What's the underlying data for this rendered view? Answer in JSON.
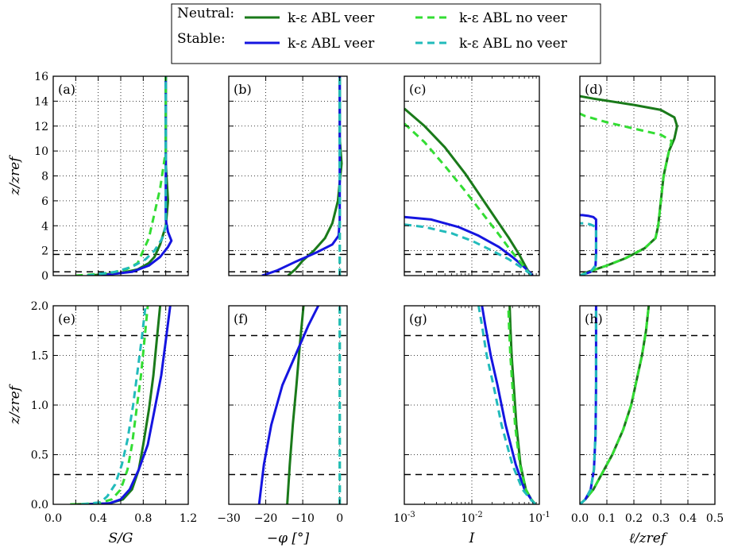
{
  "legend": {
    "rows": [
      {
        "label": "Neutral:",
        "entries": [
          {
            "text": "k-ε ABL veer",
            "color": "#1a7a1a",
            "dash": "solid"
          },
          {
            "text": "k-ε ABL no veer",
            "color": "#33dd33",
            "dash": "dashed"
          }
        ]
      },
      {
        "label": "Stable:",
        "entries": [
          {
            "text": "k-ε ABL veer",
            "color": "#1515e0",
            "dash": "solid"
          },
          {
            "text": "k-ε ABL no veer",
            "color": "#22bbbb",
            "dash": "dashed"
          }
        ]
      }
    ]
  },
  "chart_data": [
    {
      "panel": "(a)",
      "type": "line",
      "xlabel": "",
      "ylabel": "z/zref",
      "xlim": [
        0,
        1.2
      ],
      "ylim": [
        0,
        16
      ],
      "xscale": "linear",
      "yticks": [
        "0",
        "2",
        "4",
        "6",
        "8",
        "10",
        "12",
        "14",
        "16"
      ],
      "xticks": [],
      "hlines": [
        0.3,
        1.7
      ],
      "series": [
        {
          "name": "Neutral veer",
          "color": "#1a7a1a",
          "dash": "solid",
          "x": [
            0.3,
            0.6,
            0.75,
            0.85,
            0.9,
            0.95,
            1.0,
            1.02,
            1.0,
            1.0,
            1.0
          ],
          "y": [
            0,
            0.2,
            0.5,
            1,
            1.5,
            2.5,
            4,
            6,
            9,
            12,
            16
          ]
        },
        {
          "name": "Neutral no veer",
          "color": "#33dd33",
          "dash": "dashed",
          "x": [
            0.2,
            0.5,
            0.65,
            0.75,
            0.8,
            0.85,
            0.9,
            0.95,
            1.0,
            1.0
          ],
          "y": [
            0,
            0.2,
            0.5,
            1,
            2,
            3,
            5,
            7,
            10,
            16
          ]
        },
        {
          "name": "Stable veer",
          "color": "#1515e0",
          "dash": "solid",
          "x": [
            0.4,
            0.7,
            0.85,
            0.95,
            1.02,
            1.05,
            1.02,
            1.0,
            1.0
          ],
          "y": [
            0,
            0.3,
            0.8,
            1.5,
            2.3,
            2.8,
            3.5,
            4.5,
            16
          ]
        },
        {
          "name": "Stable no veer",
          "color": "#22bbbb",
          "dash": "dashed",
          "x": [
            0.3,
            0.55,
            0.7,
            0.82,
            0.9,
            0.97,
            1.0,
            1.0
          ],
          "y": [
            0,
            0.3,
            0.7,
            1.3,
            2,
            3,
            4,
            16
          ]
        }
      ]
    },
    {
      "panel": "(b)",
      "type": "line",
      "xlabel": "",
      "ylabel": "",
      "xlim": [
        -30,
        2
      ],
      "ylim": [
        0,
        16
      ],
      "xscale": "linear",
      "yticks": [],
      "xticks": [],
      "hlines": [
        0.3,
        1.7
      ],
      "series": [
        {
          "name": "Neutral veer",
          "color": "#1a7a1a",
          "dash": "solid",
          "x": [
            -14,
            -12,
            -10,
            -7,
            -4,
            -2,
            -0.5,
            0,
            0.5,
            0,
            0
          ],
          "y": [
            0,
            0.5,
            1.2,
            2,
            3,
            4.2,
            6,
            7.5,
            9,
            11,
            16
          ]
        },
        {
          "name": "Neutral no veer",
          "color": "#33dd33",
          "dash": "dashed",
          "x": [
            0,
            0
          ],
          "y": [
            0,
            16
          ]
        },
        {
          "name": "Stable veer",
          "color": "#1515e0",
          "dash": "solid",
          "x": [
            -21,
            -17,
            -12,
            -6,
            -2,
            -0.3,
            0,
            0
          ],
          "y": [
            0,
            0.4,
            1.1,
            1.9,
            2.5,
            3.2,
            4.5,
            16
          ]
        },
        {
          "name": "Stable no veer",
          "color": "#22bbbb",
          "dash": "dashed",
          "x": [
            0,
            0
          ],
          "y": [
            0,
            16
          ]
        }
      ]
    },
    {
      "panel": "(c)",
      "type": "line",
      "xlabel": "",
      "ylabel": "",
      "xlim": [
        -3,
        -1
      ],
      "ylim": [
        0,
        16
      ],
      "xscale": "log10",
      "yticks": [],
      "xticks": [],
      "hlines": [
        0.3,
        1.7
      ],
      "series": [
        {
          "name": "Neutral veer",
          "color": "#1a7a1a",
          "dash": "solid",
          "x": [
            -3,
            -2.7,
            -2.4,
            -2.1,
            -1.8,
            -1.6,
            -1.45,
            -1.3,
            -1.18,
            -1.12
          ],
          "y": [
            13.4,
            12,
            10.3,
            8.2,
            5.8,
            4.2,
            3,
            1.7,
            0.5,
            0
          ]
        },
        {
          "name": "Neutral no veer",
          "color": "#33dd33",
          "dash": "dashed",
          "x": [
            -3,
            -2.7,
            -2.4,
            -2.1,
            -1.8,
            -1.6,
            -1.45,
            -1.3,
            -1.18,
            -1.12
          ],
          "y": [
            12.2,
            10.7,
            8.8,
            6.8,
            4.7,
            3.3,
            2.2,
            1.2,
            0.4,
            0
          ]
        },
        {
          "name": "Stable veer",
          "color": "#1515e0",
          "dash": "solid",
          "x": [
            -3,
            -2.6,
            -2.2,
            -1.9,
            -1.6,
            -1.4,
            -1.25,
            -1.15,
            -1.1
          ],
          "y": [
            4.7,
            4.5,
            3.9,
            3.2,
            2.3,
            1.5,
            0.8,
            0.3,
            0
          ]
        },
        {
          "name": "Stable no veer",
          "color": "#22bbbb",
          "dash": "dashed",
          "x": [
            -3,
            -2.7,
            -2.3,
            -2,
            -1.7,
            -1.45,
            -1.25,
            -1.15,
            -1.1
          ],
          "y": [
            4.1,
            3.9,
            3.4,
            2.8,
            2,
            1.3,
            0.6,
            0.2,
            0
          ]
        }
      ]
    },
    {
      "panel": "(d)",
      "type": "line",
      "xlabel": "",
      "ylabel": "",
      "xlim": [
        0,
        0.5
      ],
      "ylim": [
        0,
        16
      ],
      "xscale": "linear",
      "yticks": [],
      "xticks": [],
      "hlines": [
        0.3,
        1.7
      ],
      "series": [
        {
          "name": "Neutral veer",
          "color": "#1a7a1a",
          "dash": "solid",
          "x": [
            0,
            0.03,
            0.1,
            0.17,
            0.24,
            0.28,
            0.29,
            0.3,
            0.31,
            0.33,
            0.35,
            0.36,
            0.35,
            0.3,
            0.2,
            0.05,
            0
          ],
          "y": [
            0,
            0.3,
            0.8,
            1.4,
            2.2,
            3,
            4,
            6,
            8,
            10,
            11,
            12,
            12.7,
            13.3,
            13.7,
            14.2,
            14.4
          ]
        },
        {
          "name": "Neutral no veer",
          "color": "#33dd33",
          "dash": "dashed",
          "x": [
            0,
            0.03,
            0.1,
            0.17,
            0.24,
            0.28,
            0.29,
            0.3,
            0.31,
            0.33,
            0.34,
            0.3,
            0.2,
            0.1,
            0.02,
            0
          ],
          "y": [
            0,
            0.3,
            0.8,
            1.4,
            2.2,
            3,
            4,
            6,
            8,
            10,
            10.8,
            11.3,
            11.8,
            12.3,
            12.8,
            13
          ]
        },
        {
          "name": "Stable veer",
          "color": "#1515e0",
          "dash": "solid",
          "x": [
            0,
            0.04,
            0.058,
            0.06,
            0.06,
            0.05,
            0.03,
            0.01,
            0
          ],
          "y": [
            0,
            0.3,
            0.8,
            1.7,
            4.5,
            4.7,
            4.8,
            4.85,
            4.85
          ]
        },
        {
          "name": "Stable no veer",
          "color": "#22bbbb",
          "dash": "dashed",
          "x": [
            0,
            0.04,
            0.058,
            0.06,
            0.06,
            0.04,
            0.02,
            0
          ],
          "y": [
            0,
            0.3,
            0.8,
            1.7,
            3.9,
            4.1,
            4.2,
            4.2
          ]
        }
      ]
    },
    {
      "panel": "(e)",
      "type": "line",
      "xlabel": "S/G",
      "ylabel": "z/zref",
      "xlim": [
        0,
        1.2
      ],
      "ylim": [
        0,
        2
      ],
      "xscale": "linear",
      "yticks": [
        "0.0",
        "0.5",
        "1.0",
        "1.5",
        "2.0"
      ],
      "xticks": [
        "0.0",
        "0.4",
        "0.8",
        "1.2"
      ],
      "hlines": [
        0.3,
        1.7
      ],
      "series": [
        {
          "name": "Neutral veer",
          "color": "#1a7a1a",
          "dash": "solid",
          "x": [
            0.2,
            0.5,
            0.62,
            0.7,
            0.76,
            0.8,
            0.85,
            0.89,
            0.92,
            0.95
          ],
          "y": [
            0,
            0.01,
            0.05,
            0.15,
            0.35,
            0.6,
            0.95,
            1.3,
            1.65,
            2
          ]
        },
        {
          "name": "Neutral no veer",
          "color": "#33dd33",
          "dash": "dashed",
          "x": [
            0.15,
            0.4,
            0.52,
            0.6,
            0.66,
            0.7,
            0.74,
            0.78,
            0.81,
            0.84
          ],
          "y": [
            0,
            0.01,
            0.05,
            0.15,
            0.35,
            0.6,
            0.95,
            1.3,
            1.65,
            2
          ]
        },
        {
          "name": "Stable veer",
          "color": "#1515e0",
          "dash": "solid",
          "x": [
            0.3,
            0.5,
            0.6,
            0.68,
            0.76,
            0.84,
            0.9,
            0.96,
            1.0,
            1.04
          ],
          "y": [
            0,
            0.01,
            0.05,
            0.15,
            0.35,
            0.6,
            0.95,
            1.3,
            1.65,
            2
          ]
        },
        {
          "name": "Stable no veer",
          "color": "#22bbbb",
          "dash": "dashed",
          "x": [
            0.25,
            0.42,
            0.48,
            0.55,
            0.61,
            0.66,
            0.71,
            0.75,
            0.79,
            0.82
          ],
          "y": [
            0,
            0.02,
            0.08,
            0.2,
            0.4,
            0.65,
            1.0,
            1.35,
            1.7,
            2
          ]
        }
      ]
    },
    {
      "panel": "(f)",
      "type": "line",
      "xlabel": "−φ [°]",
      "ylabel": "",
      "xlim": [
        -30,
        2
      ],
      "ylim": [
        0,
        2
      ],
      "xscale": "linear",
      "yticks": [],
      "xticks": [
        "−30",
        "−20",
        "−10",
        "0"
      ],
      "hlines": [
        0.3,
        1.7
      ],
      "series": [
        {
          "name": "Neutral veer",
          "color": "#1a7a1a",
          "dash": "solid",
          "x": [
            -14.2,
            -13.5,
            -12.7,
            -11.7,
            -10.8,
            -9.8
          ],
          "y": [
            0,
            0.4,
            0.8,
            1.2,
            1.6,
            2
          ]
        },
        {
          "name": "Neutral no veer",
          "color": "#33dd33",
          "dash": "dashed",
          "x": [
            0,
            0
          ],
          "y": [
            0,
            2
          ]
        },
        {
          "name": "Stable veer",
          "color": "#1515e0",
          "dash": "solid",
          "x": [
            -21.8,
            -20.5,
            -18.5,
            -15.5,
            -12,
            -8.5,
            -5.8
          ],
          "y": [
            0,
            0.4,
            0.8,
            1.2,
            1.5,
            1.8,
            2
          ]
        },
        {
          "name": "Stable no veer",
          "color": "#22bbbb",
          "dash": "dashed",
          "x": [
            0,
            0
          ],
          "y": [
            0,
            2
          ]
        }
      ]
    },
    {
      "panel": "(g)",
      "type": "line",
      "xlabel": "I",
      "ylabel": "",
      "xlim": [
        -3,
        -1
      ],
      "ylim": [
        0,
        2
      ],
      "xscale": "log10",
      "yticks": [],
      "xticks": [
        "10^-3",
        "10^-2",
        "10^-1"
      ],
      "hlines": [
        0.3,
        1.7
      ],
      "series": [
        {
          "name": "Neutral veer",
          "color": "#1a7a1a",
          "dash": "solid",
          "x": [
            -1.06,
            -1.12,
            -1.2,
            -1.28,
            -1.34,
            -1.38,
            -1.41,
            -1.43,
            -1.44
          ],
          "y": [
            0,
            0.05,
            0.15,
            0.4,
            0.8,
            1.2,
            1.5,
            1.8,
            2
          ]
        },
        {
          "name": "Neutral no veer",
          "color": "#33dd33",
          "dash": "dashed",
          "x": [
            -1.06,
            -1.12,
            -1.2,
            -1.29,
            -1.36,
            -1.4,
            -1.43,
            -1.45,
            -1.46
          ],
          "y": [
            0,
            0.05,
            0.15,
            0.4,
            0.8,
            1.2,
            1.5,
            1.8,
            2
          ]
        },
        {
          "name": "Stable veer",
          "color": "#1515e0",
          "dash": "solid",
          "x": [
            -1.06,
            -1.12,
            -1.22,
            -1.35,
            -1.5,
            -1.62,
            -1.72,
            -1.8,
            -1.85
          ],
          "y": [
            0,
            0.05,
            0.15,
            0.4,
            0.8,
            1.2,
            1.5,
            1.8,
            2
          ]
        },
        {
          "name": "Stable no veer",
          "color": "#22bbbb",
          "dash": "dashed",
          "x": [
            -1.06,
            -1.13,
            -1.25,
            -1.4,
            -1.56,
            -1.68,
            -1.78,
            -1.85,
            -1.9
          ],
          "y": [
            0,
            0.05,
            0.15,
            0.4,
            0.8,
            1.2,
            1.5,
            1.8,
            2
          ]
        }
      ]
    },
    {
      "panel": "(h)",
      "type": "line",
      "xlabel": "ℓ/zref",
      "ylabel": "",
      "xlim": [
        0,
        0.5
      ],
      "ylim": [
        0,
        2
      ],
      "xscale": "linear",
      "yticks": [],
      "xticks": [
        "0.0",
        "0.1",
        "0.2",
        "0.3",
        "0.4",
        "0.5"
      ],
      "hlines": [
        0.3,
        1.7
      ],
      "series": [
        {
          "name": "Neutral veer",
          "color": "#1a7a1a",
          "dash": "solid",
          "x": [
            0,
            0.02,
            0.05,
            0.08,
            0.12,
            0.16,
            0.19,
            0.21,
            0.23,
            0.245,
            0.255
          ],
          "y": [
            0,
            0.05,
            0.15,
            0.3,
            0.5,
            0.75,
            1.0,
            1.25,
            1.5,
            1.75,
            2
          ]
        },
        {
          "name": "Neutral no veer",
          "color": "#33dd33",
          "dash": "dashed",
          "x": [
            0,
            0.02,
            0.05,
            0.08,
            0.12,
            0.16,
            0.19,
            0.21,
            0.23,
            0.245,
            0.255
          ],
          "y": [
            0,
            0.05,
            0.15,
            0.3,
            0.5,
            0.75,
            1.0,
            1.25,
            1.5,
            1.75,
            2
          ]
        },
        {
          "name": "Stable veer",
          "color": "#1515e0",
          "dash": "solid",
          "x": [
            0,
            0.02,
            0.04,
            0.052,
            0.058,
            0.06,
            0.06
          ],
          "y": [
            0,
            0.05,
            0.15,
            0.35,
            0.7,
            1.2,
            2
          ]
        },
        {
          "name": "Stable no veer",
          "color": "#22bbbb",
          "dash": "dashed",
          "x": [
            0,
            0.02,
            0.04,
            0.052,
            0.058,
            0.06,
            0.06
          ],
          "y": [
            0,
            0.05,
            0.15,
            0.35,
            0.7,
            1.2,
            2
          ]
        }
      ]
    }
  ]
}
